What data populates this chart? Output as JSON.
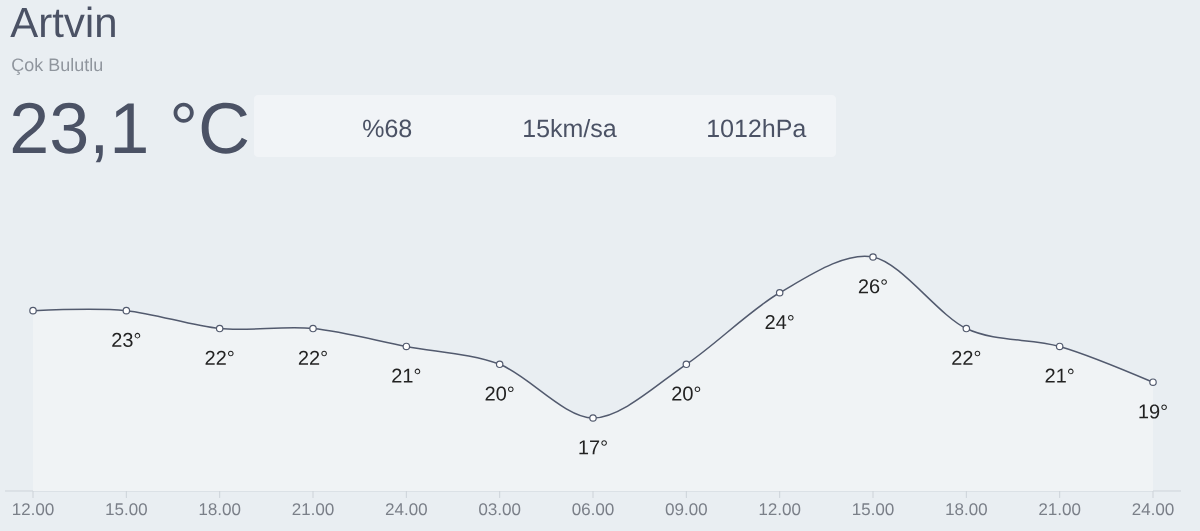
{
  "chart_data": {
    "type": "area",
    "title": "Artvin",
    "subtitle": "Çok Bulutlu",
    "annotations": [
      "23,1 °C",
      "%68",
      "15km/sa",
      "1012hPa"
    ],
    "categories": [
      "12.00",
      "15.00",
      "18.00",
      "21.00",
      "24.00",
      "03.00",
      "06.00",
      "09.00",
      "12.00",
      "15.00",
      "18.00",
      "21.00",
      "24.00"
    ],
    "values": [
      23,
      23,
      22,
      22,
      21,
      20,
      17,
      20,
      24,
      26,
      22,
      21,
      19
    ],
    "value_labels": [
      null,
      "23°",
      "22°",
      "22°",
      "21°",
      "20°",
      "17°",
      "20°",
      "24°",
      "26°",
      "22°",
      "21°",
      "19°"
    ],
    "color": "#525a6e",
    "tick_labels": "x",
    "marker": "circle"
  }
}
